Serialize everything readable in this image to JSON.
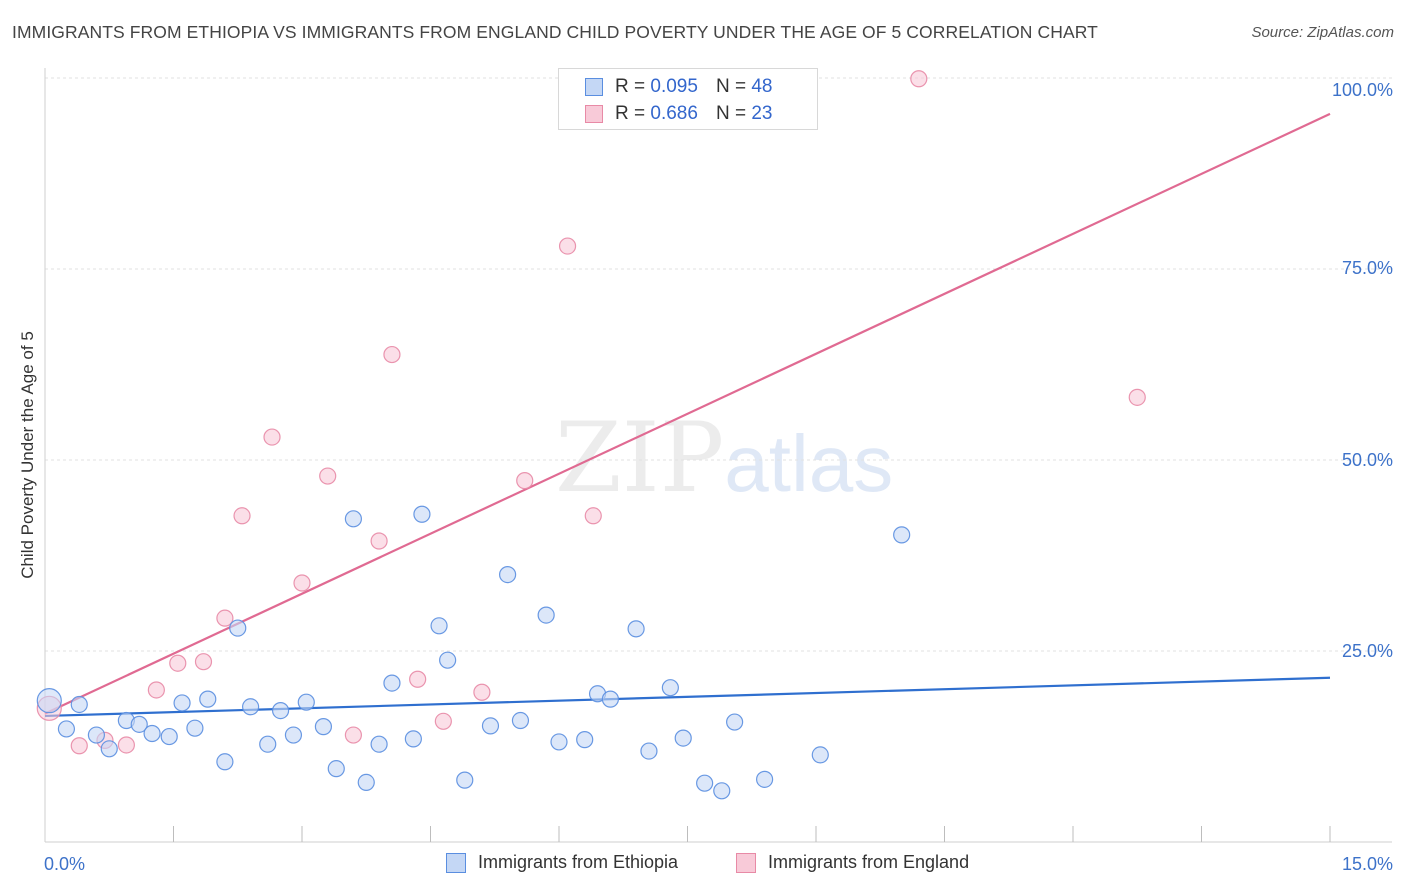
{
  "title": "IMMIGRANTS FROM ETHIOPIA VS IMMIGRANTS FROM ENGLAND CHILD POVERTY UNDER THE AGE OF 5 CORRELATION CHART",
  "source": "Source: ZipAtlas.com",
  "watermark": {
    "zip": "ZIP",
    "atlas": "atlas"
  },
  "legend": {
    "ethiopia": {
      "r_label": "R = ",
      "r_value": "0.095",
      "n_label": "N = ",
      "n_value": "48"
    },
    "england": {
      "r_label": "R = ",
      "r_value": "0.686",
      "n_label": "N = ",
      "n_value": "23"
    }
  },
  "chart_data": {
    "type": "scatter",
    "title": "IMMIGRANTS FROM ETHIOPIA VS IMMIGRANTS FROM ENGLAND CHILD POVERTY UNDER THE AGE OF 5 CORRELATION CHART",
    "xlabel": "",
    "ylabel": "Child Poverty Under the Age of 5",
    "xlim": [
      0,
      15
    ],
    "ylim": [
      0,
      102
    ],
    "x_tick_labels": [
      {
        "value": 0,
        "label": "0.0%"
      },
      {
        "value": 15,
        "label": "15.0%"
      }
    ],
    "y_tick_labels": [
      {
        "value": 25,
        "label": "25.0%"
      },
      {
        "value": 50,
        "label": "50.0%"
      },
      {
        "value": 75,
        "label": "75.0%"
      },
      {
        "value": 100,
        "label": "100.0%"
      }
    ],
    "grid": true,
    "legend_position": "top-center",
    "series": [
      {
        "name": "Immigrants from Ethiopia",
        "color": "#5a8ee0",
        "fill": "#c4d7f5",
        "r": 0.095,
        "n": 48,
        "trend": {
          "x": [
            0,
            15
          ],
          "y": [
            16.5,
            21.5
          ],
          "color": "#2f6fcf"
        },
        "points": [
          [
            0.05,
            18.5
          ],
          [
            0.25,
            14.8
          ],
          [
            0.4,
            18.0
          ],
          [
            0.6,
            14.0
          ],
          [
            0.75,
            12.2
          ],
          [
            0.95,
            15.9
          ],
          [
            1.1,
            15.4
          ],
          [
            1.25,
            14.2
          ],
          [
            1.45,
            13.8
          ],
          [
            1.6,
            18.2
          ],
          [
            1.75,
            14.9
          ],
          [
            1.9,
            18.7
          ],
          [
            2.1,
            10.5
          ],
          [
            2.25,
            28.0
          ],
          [
            2.4,
            17.7
          ],
          [
            2.6,
            12.8
          ],
          [
            2.75,
            17.2
          ],
          [
            2.9,
            14.0
          ],
          [
            3.05,
            18.3
          ],
          [
            3.25,
            15.1
          ],
          [
            3.4,
            9.6
          ],
          [
            3.6,
            42.3
          ],
          [
            3.75,
            7.8
          ],
          [
            3.9,
            12.8
          ],
          [
            4.05,
            20.8
          ],
          [
            4.3,
            13.5
          ],
          [
            4.4,
            42.9
          ],
          [
            4.6,
            28.3
          ],
          [
            4.7,
            23.8
          ],
          [
            4.9,
            8.1
          ],
          [
            5.2,
            15.2
          ],
          [
            5.4,
            35.0
          ],
          [
            5.55,
            15.9
          ],
          [
            5.85,
            29.7
          ],
          [
            6.0,
            13.1
          ],
          [
            6.3,
            13.4
          ],
          [
            6.45,
            19.4
          ],
          [
            6.6,
            18.7
          ],
          [
            6.9,
            27.9
          ],
          [
            7.05,
            11.9
          ],
          [
            7.3,
            20.2
          ],
          [
            7.45,
            13.6
          ],
          [
            7.7,
            7.7
          ],
          [
            7.9,
            6.7
          ],
          [
            8.05,
            15.7
          ],
          [
            8.4,
            8.2
          ],
          [
            9.05,
            11.4
          ],
          [
            10.0,
            40.2
          ]
        ]
      },
      {
        "name": "Immigrants from England",
        "color": "#e88aa6",
        "fill": "#f8cad8",
        "r": 0.686,
        "n": 23,
        "trend": {
          "x": [
            0,
            15
          ],
          "y": [
            16.8,
            95.3
          ],
          "color": "#e06a92"
        },
        "points": [
          [
            0.05,
            17.5
          ],
          [
            0.4,
            12.6
          ],
          [
            0.7,
            13.3
          ],
          [
            0.95,
            12.7
          ],
          [
            1.3,
            19.9
          ],
          [
            1.55,
            23.4
          ],
          [
            1.85,
            23.6
          ],
          [
            2.1,
            29.3
          ],
          [
            2.3,
            42.7
          ],
          [
            2.65,
            53.0
          ],
          [
            3.0,
            33.9
          ],
          [
            3.3,
            47.9
          ],
          [
            3.6,
            14.0
          ],
          [
            3.9,
            39.4
          ],
          [
            4.05,
            63.8
          ],
          [
            4.35,
            21.3
          ],
          [
            4.65,
            15.8
          ],
          [
            5.1,
            19.6
          ],
          [
            5.6,
            47.3
          ],
          [
            6.1,
            78.0
          ],
          [
            6.4,
            42.7
          ],
          [
            10.2,
            99.9
          ],
          [
            12.75,
            58.2
          ]
        ]
      }
    ]
  }
}
